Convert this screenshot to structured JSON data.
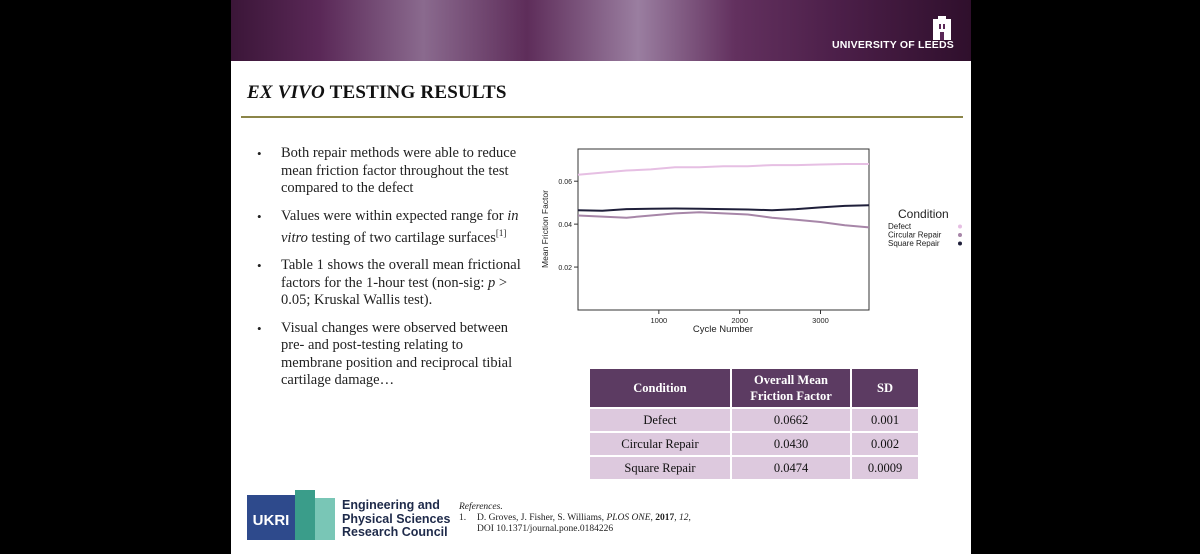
{
  "header": {
    "university_name": "UNIVERSITY OF LEEDS",
    "logo_icon": "leeds-tower-logo-icon"
  },
  "slide": {
    "title_italic": "EX VIVO",
    "title_rest": "TESTING RESULTS"
  },
  "bullets": [
    {
      "text": "Both repair methods were able to reduce mean friction factor throughout the test compared to the defect"
    },
    {
      "pre": "Values were within expected range for ",
      "italic": "in vitro",
      "post": " testing of two cartilage surfaces",
      "sup": "[1]"
    },
    {
      "pre": "Table 1 shows the overall mean frictional factors for the 1-hour test (non-sig: ",
      "italic": "p",
      "post": " > 0.05; Kruskal Wallis test)."
    },
    {
      "text": "Visual changes were observed between pre- and post-testing relating to membrane position and reciprocal tibial cartilage damage…"
    }
  ],
  "chart_data": {
    "type": "line",
    "title": "",
    "xlabel": "Cycle Number",
    "ylabel": "Mean Friction Factor",
    "xlim": [
      0,
      3600
    ],
    "ylim": [
      0,
      0.075
    ],
    "xticks": [
      1000,
      2000,
      3000
    ],
    "xtick_labels": [
      "1000",
      "2000",
      "3000"
    ],
    "yticks": [
      0.02,
      0.04,
      0.06
    ],
    "ytick_labels": [
      "0.02",
      "0.04",
      "0.06"
    ],
    "legend_title": "Condition",
    "legend_position": "right",
    "series": [
      {
        "name": "Defect",
        "color": "#e6bfe3",
        "x": [
          0,
          300,
          600,
          900,
          1200,
          1500,
          1800,
          2100,
          2400,
          2700,
          3000,
          3300,
          3600
        ],
        "y": [
          0.063,
          0.064,
          0.065,
          0.0655,
          0.0665,
          0.0665,
          0.067,
          0.067,
          0.0675,
          0.0675,
          0.0678,
          0.068,
          0.068
        ]
      },
      {
        "name": "Circular Repair",
        "color": "#a786a8",
        "x": [
          0,
          300,
          600,
          900,
          1200,
          1500,
          1800,
          2100,
          2400,
          2700,
          3000,
          3300,
          3600
        ],
        "y": [
          0.044,
          0.0435,
          0.043,
          0.044,
          0.045,
          0.0455,
          0.045,
          0.0445,
          0.043,
          0.042,
          0.041,
          0.0395,
          0.0385
        ]
      },
      {
        "name": "Square Repair",
        "color": "#1f1f3a",
        "x": [
          0,
          300,
          600,
          900,
          1200,
          1500,
          1800,
          2100,
          2400,
          2700,
          3000,
          3300,
          3600
        ],
        "y": [
          0.0465,
          0.0462,
          0.047,
          0.0472,
          0.0473,
          0.0472,
          0.047,
          0.0468,
          0.0465,
          0.047,
          0.0478,
          0.0485,
          0.0488
        ]
      }
    ]
  },
  "table": {
    "headers": [
      "Condition",
      "Overall Mean Friction Factor",
      "SD"
    ],
    "rows": [
      [
        "Defect",
        "0.0662",
        "0.001"
      ],
      [
        "Circular Repair",
        "0.0430",
        "0.002"
      ],
      [
        "Square Repair",
        "0.0474",
        "0.0009"
      ]
    ]
  },
  "footer": {
    "ukri_logo_text": "UKRI",
    "funder_line1": "Engineering and",
    "funder_line2": "Physical Sciences",
    "funder_line3": "Research Council",
    "references_heading": "References",
    "ref_number": "1.",
    "ref_authors": "D. Groves, J. Fisher, S. Williams, ",
    "ref_journal": "PLOS ONE",
    "ref_sep": ", ",
    "ref_year": "2017",
    "ref_volume": "12",
    "ref_doi": "DOI 10.1371/journal.pone.0184226"
  },
  "colors": {
    "banner_dark": "#3b1638",
    "banner_light": "#9a7ea0",
    "title_rule": "#8b8548",
    "table_header": "#5c3b62",
    "table_cell": "#ddc9de",
    "ukri_blue": "#2e4a8c",
    "ukri_teal": "#3a9d8a"
  }
}
